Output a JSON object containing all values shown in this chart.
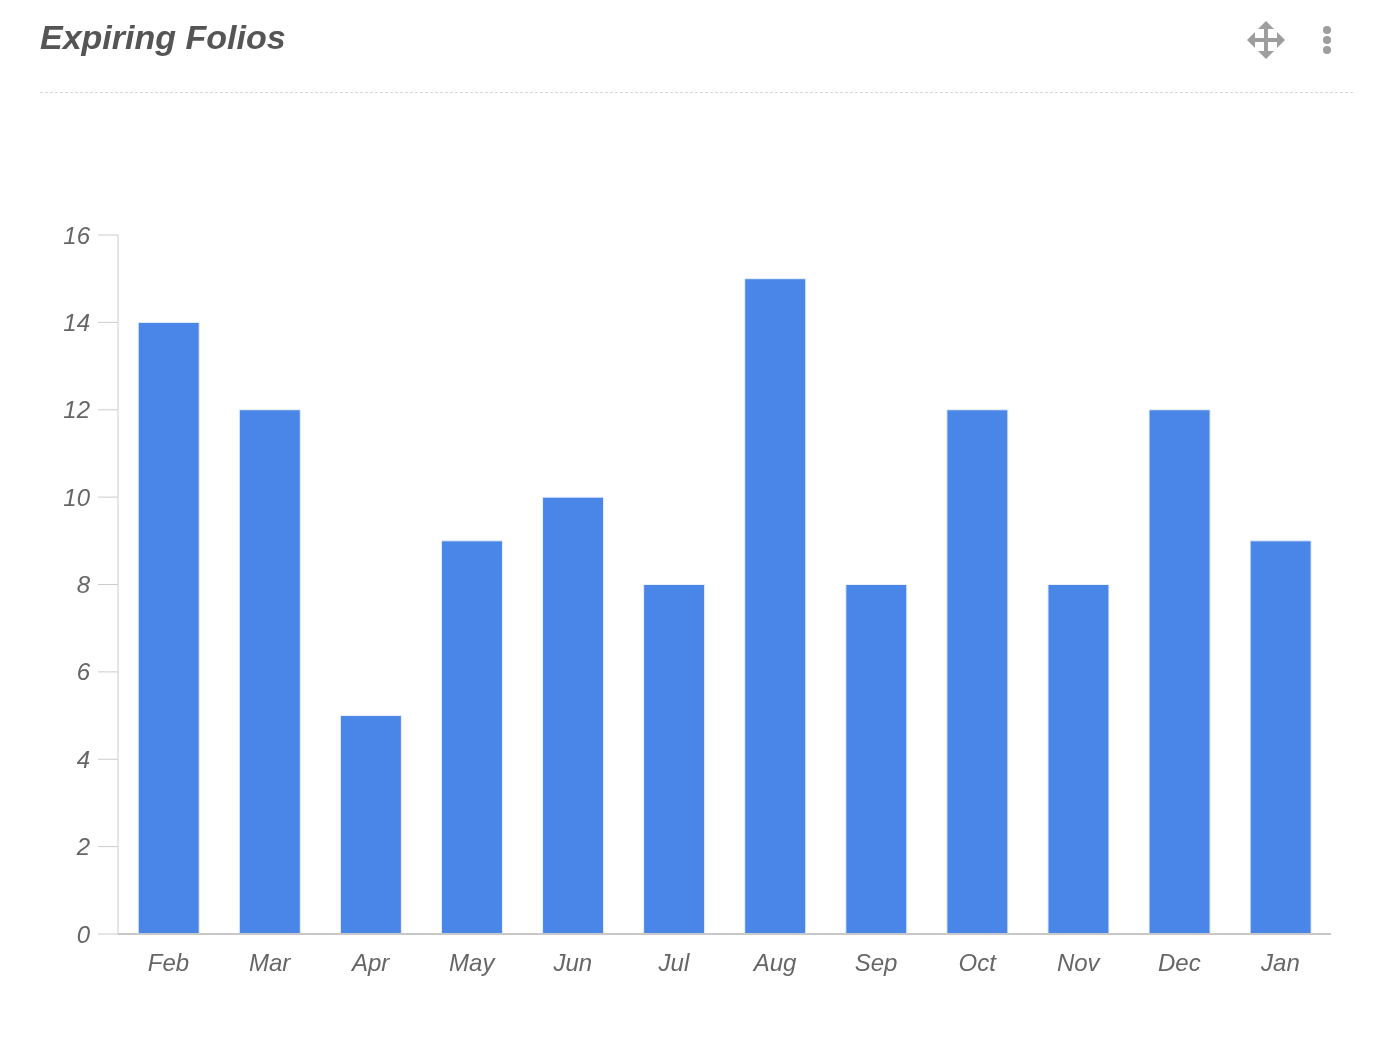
{
  "chart_data": {
    "type": "bar",
    "title": "Expiring Folios",
    "categories": [
      "Feb",
      "Mar",
      "Apr",
      "May",
      "Jun",
      "Jul",
      "Aug",
      "Sep",
      "Oct",
      "Nov",
      "Dec",
      "Jan"
    ],
    "values": [
      14,
      12,
      5,
      9,
      10,
      8,
      15,
      8,
      12,
      8,
      12,
      9
    ],
    "color": "#4a86e8",
    "ylim": [
      0,
      16
    ],
    "yticks": [
      0,
      2,
      4,
      6,
      8,
      10,
      12,
      14,
      16
    ],
    "grid": false,
    "legend": false
  }
}
